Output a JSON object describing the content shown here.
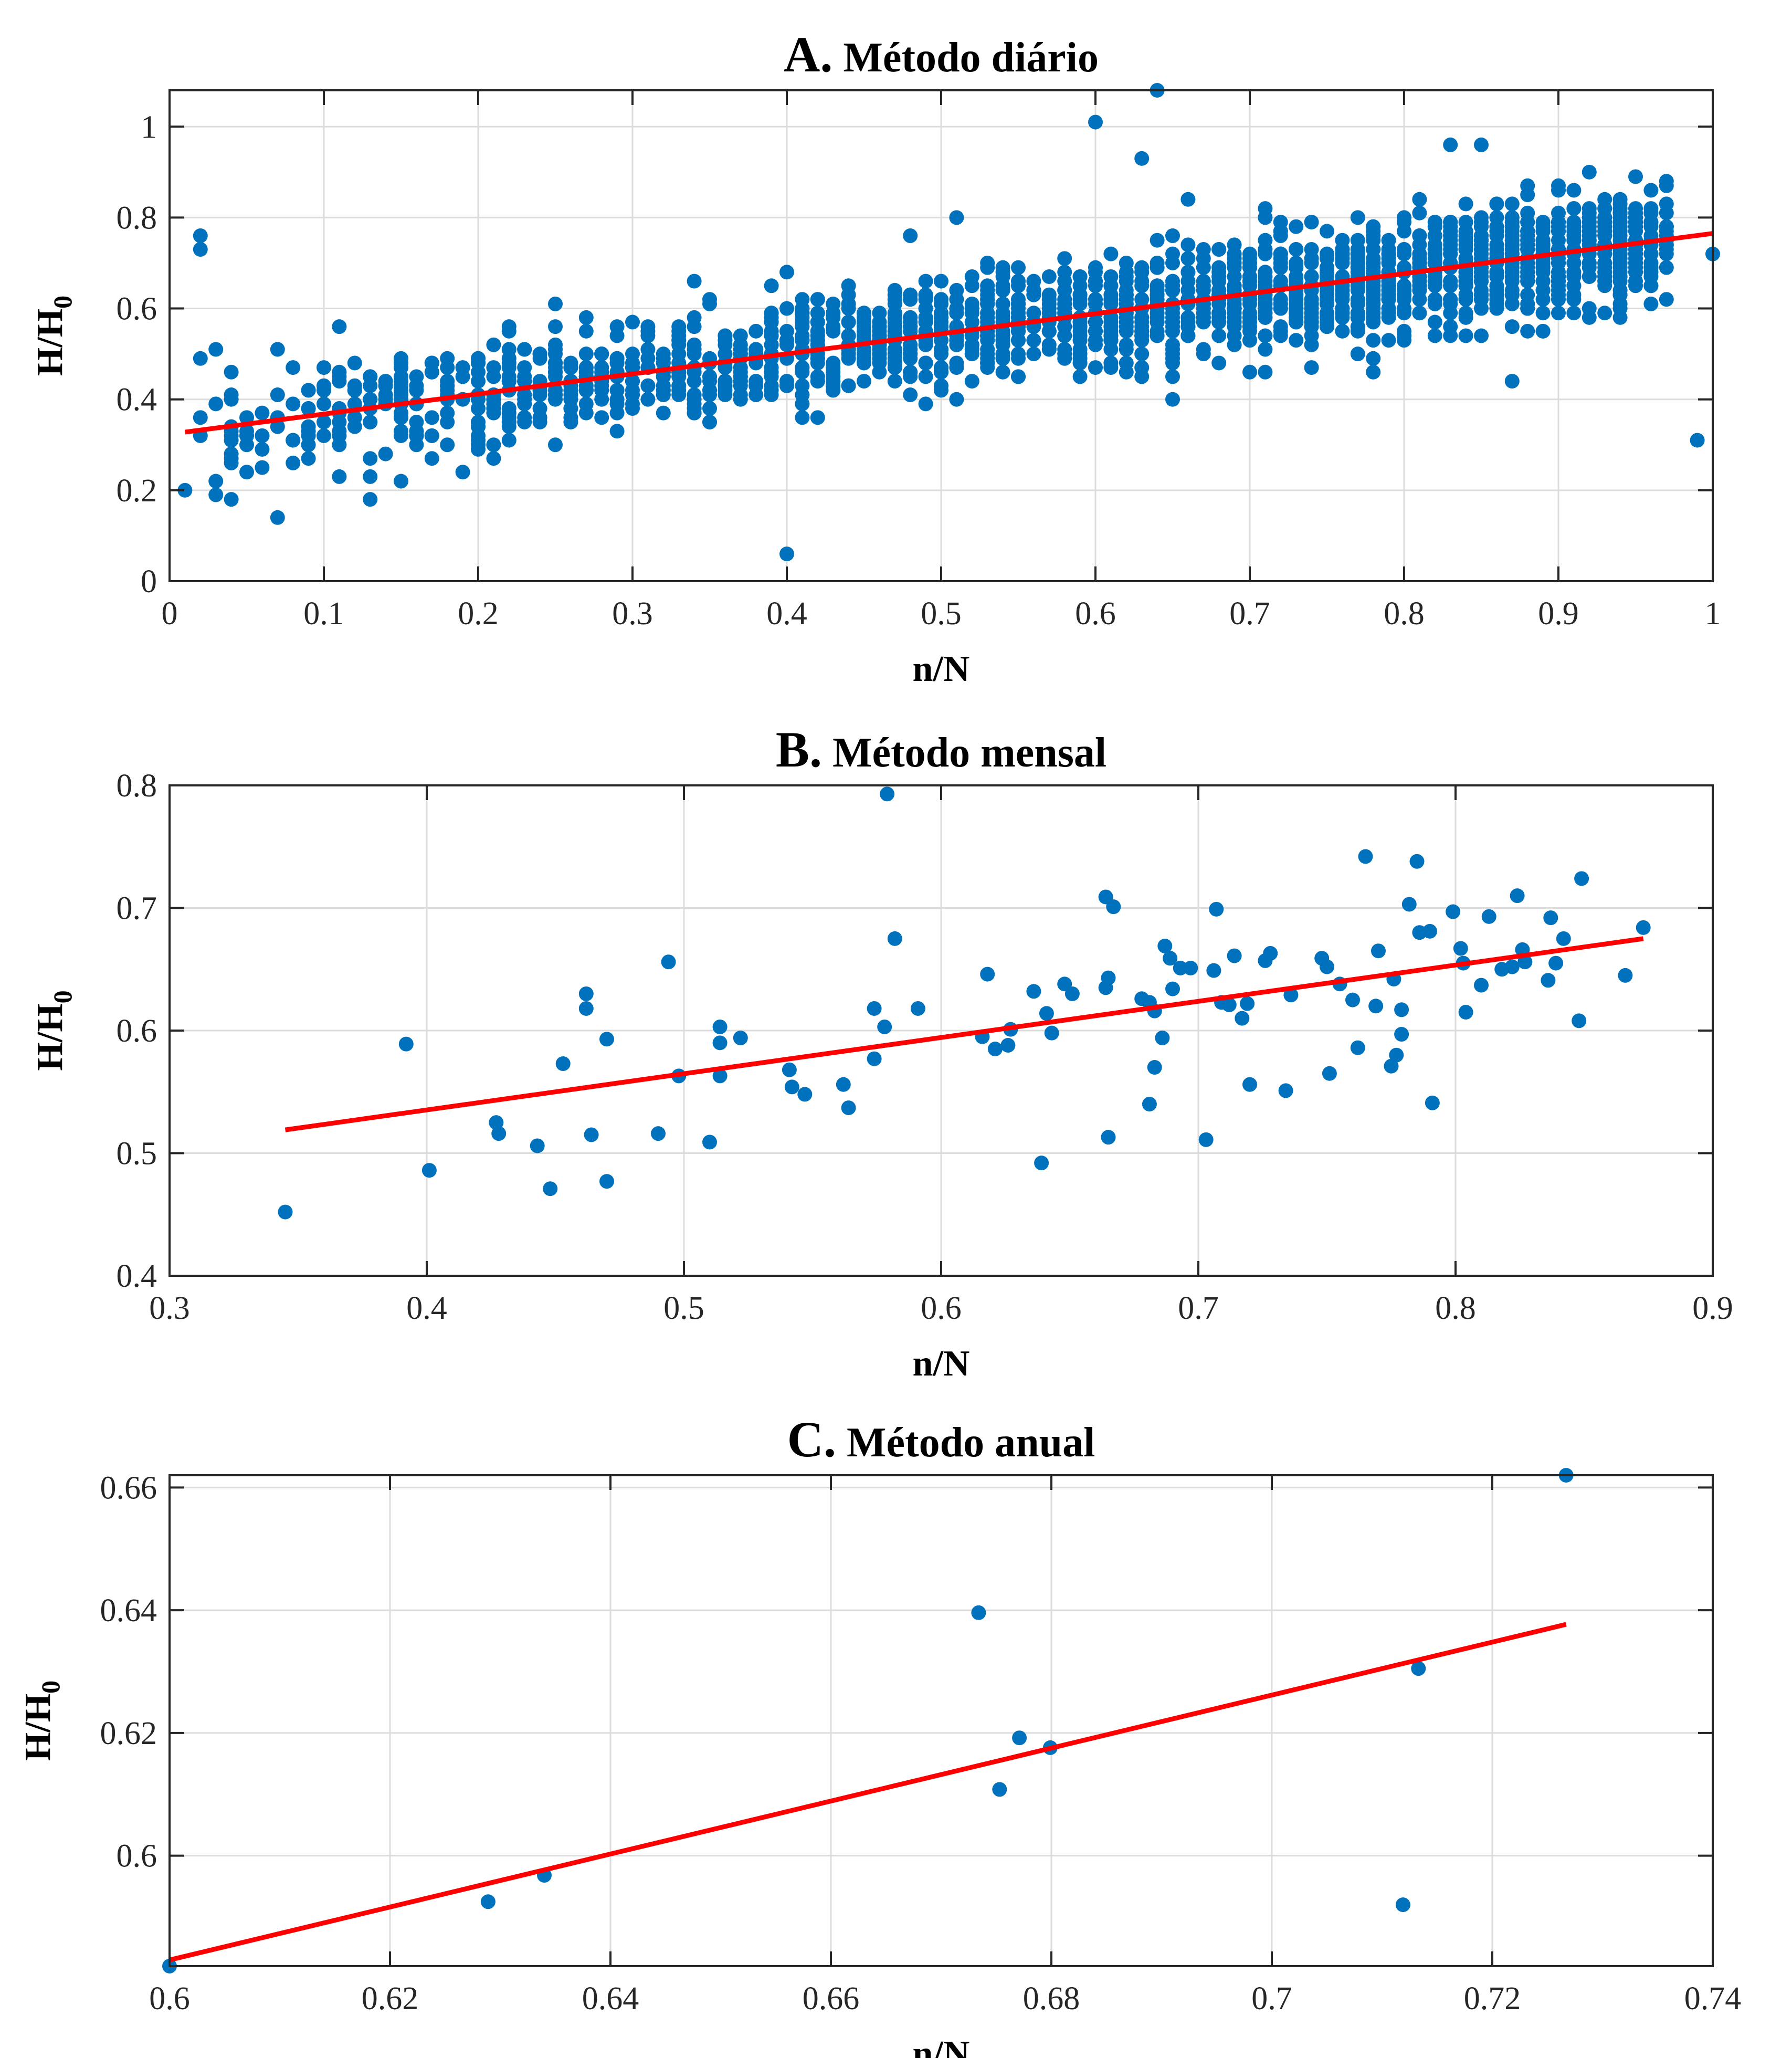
{
  "colors": {
    "points": "#0072BD",
    "fit": "#FF0000"
  },
  "chart_data": [
    {
      "type": "scatter",
      "title_letter": "A.",
      "title_text": "Método diário",
      "xlabel": "n/N",
      "ylabel_main": "H/H",
      "ylabel_sub": "0",
      "xlim": [
        0,
        1
      ],
      "ylim": [
        0,
        1.08
      ],
      "xticks": [
        0,
        0.1,
        0.2,
        0.3,
        0.4,
        0.5,
        0.6,
        0.7,
        0.8,
        0.9,
        1
      ],
      "xtick_labels": [
        "0",
        "0.1",
        "0.2",
        "0.3",
        "0.4",
        "0.5",
        "0.6",
        "0.7",
        "0.8",
        "0.9",
        "1"
      ],
      "yticks": [
        0,
        0.2,
        0.4,
        0.6,
        0.8,
        1
      ],
      "ytick_labels": [
        "0",
        "0.2",
        "0.4",
        "0.6",
        "0.8",
        "1"
      ],
      "grid": true,
      "cloud": {
        "description": "dense daily observations",
        "x_range": [
          0.01,
          0.97
        ],
        "slope": 0.44,
        "intercept": 0.32,
        "spread": 0.06
      },
      "points": [
        [
          0.02,
          0.76
        ],
        [
          0.02,
          0.73
        ],
        [
          0.03,
          0.51
        ],
        [
          0.01,
          0.2
        ],
        [
          0.03,
          0.19
        ],
        [
          0.04,
          0.18
        ],
        [
          0.4,
          0.06
        ],
        [
          0.6,
          1.01
        ],
        [
          0.64,
          1.08
        ],
        [
          0.63,
          0.93
        ],
        [
          0.83,
          0.96
        ],
        [
          0.85,
          0.96
        ],
        [
          0.95,
          0.89
        ],
        [
          0.99,
          0.31
        ],
        [
          1.0,
          0.72
        ],
        [
          0.65,
          0.4
        ],
        [
          0.87,
          0.44
        ],
        [
          0.48,
          0.76
        ],
        [
          0.51,
          0.8
        ],
        [
          0.66,
          0.84
        ],
        [
          0.71,
          0.82
        ],
        [
          0.11,
          0.56
        ],
        [
          0.07,
          0.51
        ],
        [
          0.08,
          0.47
        ],
        [
          0.19,
          0.24
        ],
        [
          0.21,
          0.27
        ],
        [
          0.17,
          0.27
        ],
        [
          0.25,
          0.3
        ],
        [
          0.3,
          0.57
        ],
        [
          0.4,
          0.68
        ],
        [
          0.41,
          0.36
        ],
        [
          0.35,
          0.35
        ],
        [
          0.6,
          0.47
        ],
        [
          0.78,
          0.46
        ],
        [
          0.88,
          0.55
        ],
        [
          0.96,
          0.69
        ],
        [
          0.92,
          0.58
        ],
        [
          0.81,
          0.84
        ],
        [
          0.9,
          0.86
        ],
        [
          0.94,
          0.84
        ]
      ],
      "fit": {
        "x": [
          0.01,
          1.0
        ],
        "y": [
          0.328,
          0.765
        ]
      }
    },
    {
      "type": "scatter",
      "title_letter": "B.",
      "title_text": "Método mensal",
      "xlabel": "n/N",
      "ylabel_main": "H/H",
      "ylabel_sub": "0",
      "xlim": [
        0.3,
        0.9
      ],
      "ylim": [
        0.4,
        0.8
      ],
      "xticks": [
        0.3,
        0.4,
        0.5,
        0.6,
        0.7,
        0.8,
        0.9
      ],
      "xtick_labels": [
        "0.3",
        "0.4",
        "0.5",
        "0.6",
        "0.7",
        "0.8",
        "0.9"
      ],
      "yticks": [
        0.4,
        0.5,
        0.6,
        0.7,
        0.8
      ],
      "ytick_labels": [
        "0.4",
        "0.5",
        "0.6",
        "0.7",
        "0.8"
      ],
      "grid": true,
      "points": [
        [
          0.345,
          0.452
        ],
        [
          0.392,
          0.589
        ],
        [
          0.401,
          0.486
        ],
        [
          0.427,
          0.525
        ],
        [
          0.428,
          0.516
        ],
        [
          0.443,
          0.506
        ],
        [
          0.448,
          0.471
        ],
        [
          0.453,
          0.573
        ],
        [
          0.462,
          0.63
        ],
        [
          0.462,
          0.618
        ],
        [
          0.464,
          0.515
        ],
        [
          0.47,
          0.593
        ],
        [
          0.47,
          0.477
        ],
        [
          0.49,
          0.516
        ],
        [
          0.494,
          0.656
        ],
        [
          0.498,
          0.563
        ],
        [
          0.51,
          0.509
        ],
        [
          0.514,
          0.603
        ],
        [
          0.514,
          0.59
        ],
        [
          0.514,
          0.563
        ],
        [
          0.522,
          0.594
        ],
        [
          0.541,
          0.568
        ],
        [
          0.542,
          0.554
        ],
        [
          0.547,
          0.548
        ],
        [
          0.562,
          0.556
        ],
        [
          0.564,
          0.537
        ],
        [
          0.574,
          0.618
        ],
        [
          0.574,
          0.577
        ],
        [
          0.578,
          0.603
        ],
        [
          0.579,
          0.793
        ],
        [
          0.582,
          0.675
        ],
        [
          0.591,
          0.618
        ],
        [
          0.616,
          0.595
        ],
        [
          0.618,
          0.646
        ],
        [
          0.621,
          0.585
        ],
        [
          0.626,
          0.588
        ],
        [
          0.627,
          0.601
        ],
        [
          0.636,
          0.632
        ],
        [
          0.639,
          0.492
        ],
        [
          0.641,
          0.614
        ],
        [
          0.643,
          0.598
        ],
        [
          0.648,
          0.638
        ],
        [
          0.651,
          0.63
        ],
        [
          0.664,
          0.709
        ],
        [
          0.664,
          0.635
        ],
        [
          0.665,
          0.643
        ],
        [
          0.665,
          0.513
        ],
        [
          0.667,
          0.701
        ],
        [
          0.678,
          0.626
        ],
        [
          0.681,
          0.623
        ],
        [
          0.681,
          0.54
        ],
        [
          0.683,
          0.616
        ],
        [
          0.683,
          0.57
        ],
        [
          0.686,
          0.594
        ],
        [
          0.687,
          0.669
        ],
        [
          0.689,
          0.659
        ],
        [
          0.69,
          0.634
        ],
        [
          0.693,
          0.651
        ],
        [
          0.697,
          0.651
        ],
        [
          0.703,
          0.511
        ],
        [
          0.706,
          0.649
        ],
        [
          0.707,
          0.699
        ],
        [
          0.709,
          0.623
        ],
        [
          0.712,
          0.621
        ],
        [
          0.714,
          0.661
        ],
        [
          0.717,
          0.61
        ],
        [
          0.719,
          0.622
        ],
        [
          0.72,
          0.556
        ],
        [
          0.726,
          0.657
        ],
        [
          0.728,
          0.663
        ],
        [
          0.734,
          0.551
        ],
        [
          0.736,
          0.629
        ],
        [
          0.748,
          0.659
        ],
        [
          0.75,
          0.652
        ],
        [
          0.751,
          0.565
        ],
        [
          0.755,
          0.638
        ],
        [
          0.76,
          0.625
        ],
        [
          0.762,
          0.586
        ],
        [
          0.765,
          0.742
        ],
        [
          0.769,
          0.62
        ],
        [
          0.77,
          0.665
        ],
        [
          0.775,
          0.571
        ],
        [
          0.776,
          0.642
        ],
        [
          0.777,
          0.58
        ],
        [
          0.779,
          0.617
        ],
        [
          0.779,
          0.597
        ],
        [
          0.782,
          0.703
        ],
        [
          0.785,
          0.738
        ],
        [
          0.786,
          0.68
        ],
        [
          0.79,
          0.681
        ],
        [
          0.791,
          0.541
        ],
        [
          0.799,
          0.697
        ],
        [
          0.802,
          0.667
        ],
        [
          0.803,
          0.655
        ],
        [
          0.804,
          0.615
        ],
        [
          0.81,
          0.637
        ],
        [
          0.813,
          0.693
        ],
        [
          0.818,
          0.65
        ],
        [
          0.822,
          0.652
        ],
        [
          0.824,
          0.71
        ],
        [
          0.826,
          0.666
        ],
        [
          0.827,
          0.656
        ],
        [
          0.836,
          0.641
        ],
        [
          0.837,
          0.692
        ],
        [
          0.839,
          0.655
        ],
        [
          0.842,
          0.675
        ],
        [
          0.848,
          0.608
        ],
        [
          0.849,
          0.724
        ],
        [
          0.866,
          0.645
        ],
        [
          0.873,
          0.684
        ]
      ],
      "fit": {
        "x": [
          0.345,
          0.873
        ],
        "y": [
          0.519,
          0.675
        ]
      }
    },
    {
      "type": "scatter",
      "title_letter": "C.",
      "title_text": "Método anual",
      "xlabel": "n/N",
      "ylabel_main": "H/H",
      "ylabel_sub": "0",
      "xlim": [
        0.6,
        0.74
      ],
      "ylim": [
        0.582,
        0.662
      ],
      "xticks": [
        0.6,
        0.62,
        0.64,
        0.66,
        0.68,
        0.7,
        0.72,
        0.74
      ],
      "xtick_labels": [
        "0.6",
        "0.62",
        "0.64",
        "0.66",
        "0.68",
        "0.7",
        "0.72",
        "0.74"
      ],
      "yticks": [
        0.6,
        0.62,
        0.64,
        0.66
      ],
      "ytick_labels": [
        "0.6",
        "0.62",
        "0.64",
        "0.66"
      ],
      "grid": true,
      "points": [
        [
          0.6,
          0.582
        ],
        [
          0.6289,
          0.5925
        ],
        [
          0.634,
          0.5968
        ],
        [
          0.6734,
          0.6396
        ],
        [
          0.6753,
          0.6108
        ],
        [
          0.6771,
          0.6192
        ],
        [
          0.6799,
          0.6176
        ],
        [
          0.7119,
          0.592
        ],
        [
          0.7133,
          0.6305
        ],
        [
          0.7267,
          0.662
        ]
      ],
      "fit": {
        "x": [
          0.6,
          0.7267
        ],
        "y": [
          0.583,
          0.6377
        ]
      }
    }
  ]
}
